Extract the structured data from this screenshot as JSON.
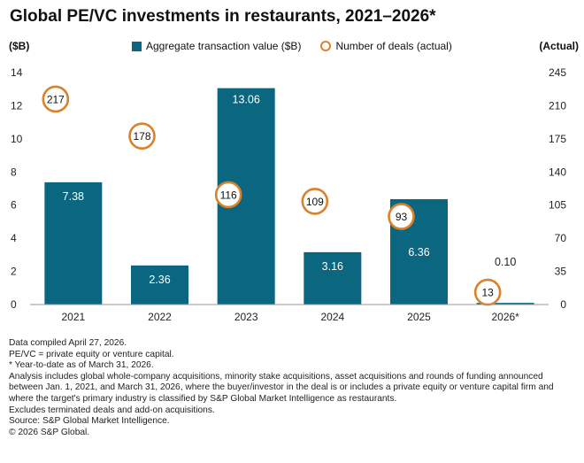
{
  "title": "Global PE/VC investments in restaurants, 2021–2026*",
  "chart_data": {
    "type": "bar",
    "title": "Global PE/VC investments in restaurants, 2021–2026*",
    "categories": [
      "2021",
      "2022",
      "2023",
      "2024",
      "2025",
      "2026*"
    ],
    "series": [
      {
        "name": "Aggregate transaction value ($B)",
        "type": "bar",
        "axis": "left",
        "values": [
          7.38,
          2.36,
          13.06,
          3.16,
          6.36,
          0.1
        ],
        "labels": [
          "7.38",
          "2.36",
          "13.06",
          "3.16",
          "6.36",
          "0.10"
        ],
        "color": "#0b6680"
      },
      {
        "name": "Number of deals (actual)",
        "type": "marker",
        "axis": "right",
        "values": [
          217,
          178,
          116,
          109,
          93,
          13
        ],
        "labels": [
          "217",
          "178",
          "116",
          "109",
          "93",
          "13"
        ],
        "color": "#d9822b"
      }
    ],
    "left_axis": {
      "label": "($B)",
      "ylim": [
        0,
        14
      ],
      "ticks": [
        "0",
        "2",
        "4",
        "6",
        "8",
        "10",
        "12",
        "14"
      ]
    },
    "right_axis": {
      "label": "(Actual)",
      "ylim": [
        0,
        245
      ],
      "ticks": [
        "0",
        "35",
        "70",
        "105",
        "140",
        "175",
        "210",
        "245"
      ]
    },
    "grid": false,
    "legend_position": "top"
  },
  "notes": [
    "Data compiled April 27, 2026.",
    "PE/VC = private equity or venture capital.",
    "* Year-to-date as of March 31, 2026.",
    "Analysis includes global whole-company acquisitions, minority stake acquisitions, asset acquisitions and rounds of funding announced between Jan. 1, 2021, and March 31, 2026, where the buyer/investor in the deal is or includes a private equity or venture capital firm and where the target's primary industry is classified by S&P Global Market Intelligence as restaurants.",
    "Excludes terminated deals and add-on acquisitions.",
    "Source: S&P Global Market Intelligence.",
    "© 2026 S&P Global."
  ]
}
